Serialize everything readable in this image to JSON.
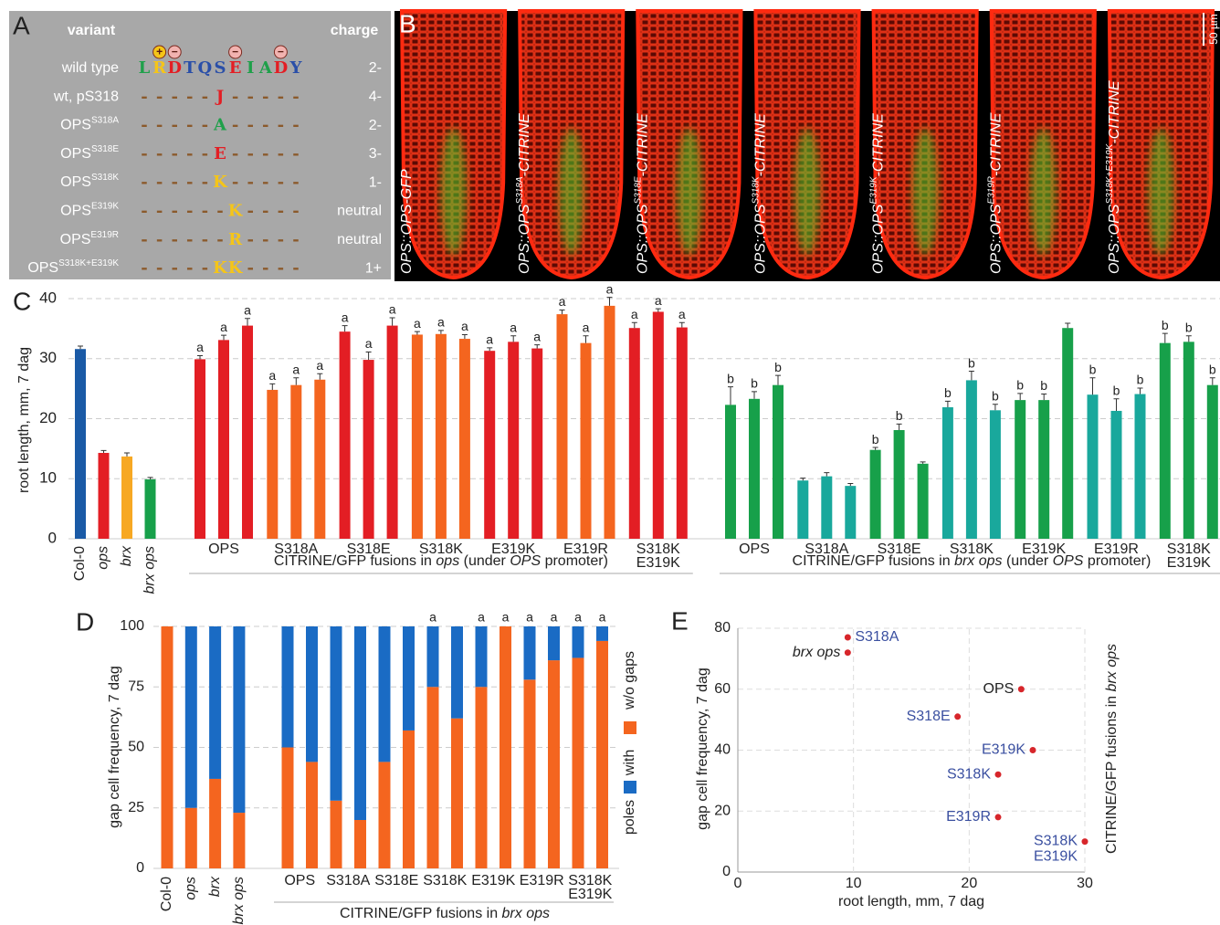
{
  "panel_a": {
    "label": "A",
    "header": {
      "variant": "variant",
      "charge": "charge"
    },
    "residue_colors": {
      "L": "#1fa04a",
      "R": "#f5c518",
      "D": "#e31e24",
      "T": "#2a4fa8",
      "Q": "#2a4fa8",
      "S": "#2a4fa8",
      "E": "#e31e24",
      "I": "#1fa04a",
      "A": "#1fa04a",
      "Y": "#2a4fa8",
      "J": "#e31e24",
      "K": "#f5c518",
      "-": "#8b5a2b"
    },
    "charge_marks": [
      {
        "position": 1,
        "sign": "+"
      },
      {
        "position": 2,
        "sign": "−"
      },
      {
        "position": 6,
        "sign": "−"
      },
      {
        "position": 9,
        "sign": "−"
      }
    ],
    "rows": [
      {
        "variant": "wild type",
        "sequence": "LRDTQSEIADY",
        "charge": "2-"
      },
      {
        "variant": "wt, pS318",
        "sequence": "-----J-----",
        "charge": "4-"
      },
      {
        "variant": "OPS",
        "superscript": "S318A",
        "sequence": "-----A-----",
        "charge": "2-"
      },
      {
        "variant": "OPS",
        "superscript": "S318E",
        "sequence": "-----E-----",
        "charge": "3-"
      },
      {
        "variant": "OPS",
        "superscript": "S318K",
        "sequence": "-----K-----",
        "charge": "1-"
      },
      {
        "variant": "OPS",
        "superscript": "E319K",
        "sequence": "------K----",
        "charge": "neutral"
      },
      {
        "variant": "OPS",
        "superscript": "E319R",
        "sequence": "------R----",
        "charge": "neutral"
      },
      {
        "variant": "OPS",
        "superscript": "S318K+E319K",
        "sequence": "-----KK----",
        "charge": "1+"
      }
    ]
  },
  "panel_b": {
    "label": "B",
    "scale_bar": "50 µm",
    "images": [
      {
        "prefix": "OPS::OPS",
        "suffix": "-GFP"
      },
      {
        "prefix": "OPS::OPS",
        "superscript": "S318A",
        "suffix": "-CITRINE"
      },
      {
        "prefix": "OPS::OPS",
        "superscript": "S318E",
        "suffix": "-CITRINE"
      },
      {
        "prefix": "OPS::OPS",
        "superscript": "S318K",
        "suffix": "-CITRINE"
      },
      {
        "prefix": "OPS::OPS",
        "superscript": "E319K",
        "suffix": "-CITRINE"
      },
      {
        "prefix": "OPS::OPS",
        "superscript": "E319R",
        "suffix": "-CITRINE"
      },
      {
        "prefix": "OPS::OPS",
        "superscript": "S318K+E319K",
        "suffix": "-CITRINE"
      }
    ]
  },
  "chart_data": [
    {
      "type": "grouped_bar",
      "label": "C",
      "ylabel": "root length, mm, 7 dag",
      "ylim": [
        0,
        40
      ],
      "yticks": [
        0,
        10,
        20,
        30,
        40
      ],
      "grid": true,
      "categories": [
        "Col-0",
        "ops",
        "brx",
        "brx ops"
      ],
      "values": [
        31.6,
        14.3,
        13.7,
        9.9
      ],
      "errors": [
        0.5,
        0.4,
        0.6,
        0.3
      ],
      "colors": [
        "#1a5aa6",
        "#e31e24",
        "#f7a823",
        "#17a04a"
      ],
      "sections": [
        {
          "label_parts": [
            "CITRINE/GFP fusions in ",
            "ops",
            " (under ",
            "OPS",
            " promoter)"
          ],
          "groups": [
            {
              "name": [
                "OPS"
              ],
              "color": "#e31e24",
              "values": [
                29.9,
                33.1,
                35.5
              ],
              "errors": [
                0.6,
                0.8,
                1.2
              ],
              "letters": [
                "a",
                "a",
                "a"
              ]
            },
            {
              "name": [
                "S318A"
              ],
              "color": "#f4651f",
              "values": [
                24.8,
                25.6,
                26.5
              ],
              "errors": [
                1.0,
                1.2,
                1.0
              ],
              "letters": [
                "a",
                "a",
                "a"
              ]
            },
            {
              "name": [
                "S318E"
              ],
              "color": "#e31e24",
              "values": [
                34.5,
                29.8,
                35.5
              ],
              "errors": [
                1.0,
                1.3,
                1.3
              ],
              "letters": [
                "a",
                "a",
                "a"
              ]
            },
            {
              "name": [
                "S318K"
              ],
              "color": "#f4651f",
              "values": [
                34.0,
                34.1,
                33.3
              ],
              "errors": [
                0.5,
                0.6,
                0.7
              ],
              "letters": [
                "a",
                "a",
                "a"
              ]
            },
            {
              "name": [
                "E319K"
              ],
              "color": "#e31e24",
              "values": [
                31.3,
                32.8,
                31.7
              ],
              "errors": [
                0.5,
                1.0,
                0.6
              ],
              "letters": [
                "a",
                "a",
                "a"
              ]
            },
            {
              "name": [
                "E319R"
              ],
              "color": "#f4651f",
              "values": [
                37.4,
                32.6,
                38.8
              ],
              "errors": [
                0.7,
                1.2,
                1.4
              ],
              "letters": [
                "a",
                "a",
                "a"
              ]
            },
            {
              "name": [
                "S318K",
                "E319K"
              ],
              "color": "#e31e24",
              "values": [
                35.1,
                37.8,
                35.2
              ],
              "errors": [
                0.9,
                0.5,
                0.8
              ],
              "letters": [
                "a",
                "a",
                "a"
              ]
            }
          ]
        },
        {
          "label_parts": [
            "CITRINE/GFP fusions in ",
            "brx ops",
            " (under ",
            "OPS",
            " promoter)"
          ],
          "groups": [
            {
              "name": [
                "OPS"
              ],
              "color": "#17a04a",
              "values": [
                22.3,
                23.3,
                25.6
              ],
              "errors": [
                3.0,
                1.2,
                1.6
              ],
              "letters": [
                "b",
                "b",
                "b"
              ]
            },
            {
              "name": [
                "S318A"
              ],
              "color": "#19a89c",
              "values": [
                9.7,
                10.4,
                8.8
              ],
              "errors": [
                0.4,
                0.6,
                0.4
              ],
              "letters": [
                null,
                null,
                null
              ]
            },
            {
              "name": [
                "S318E"
              ],
              "color": "#17a04a",
              "values": [
                14.8,
                18.1,
                12.5
              ],
              "errors": [
                0.4,
                1.0,
                0.3
              ],
              "letters": [
                "b",
                "b",
                null
              ]
            },
            {
              "name": [
                "S318K"
              ],
              "color": "#19a89c",
              "values": [
                21.9,
                26.4,
                21.4
              ],
              "errors": [
                1.0,
                1.5,
                1.0
              ],
              "letters": [
                "b",
                "b",
                "b"
              ]
            },
            {
              "name": [
                "E319K"
              ],
              "color": "#17a04a",
              "values": [
                23.1,
                23.1,
                35.1
              ],
              "errors": [
                1.1,
                1.0,
                0.8
              ],
              "letters": [
                "b",
                "b",
                null
              ]
            },
            {
              "name": [
                "E319R"
              ],
              "color": "#19a89c",
              "values": [
                24.0,
                21.3,
                24.1
              ],
              "errors": [
                2.8,
                2.0,
                1.0
              ],
              "letters": [
                "b",
                "b",
                "b"
              ]
            },
            {
              "name": [
                "S318K",
                "E319K"
              ],
              "color": "#17a04a",
              "values": [
                32.6,
                32.8,
                25.6
              ],
              "errors": [
                1.6,
                1.0,
                1.2
              ],
              "letters": [
                "b",
                "b",
                "b"
              ]
            }
          ]
        }
      ]
    },
    {
      "type": "stacked_bar",
      "label": "D",
      "ylabel": "gap cell frequency, 7 dag",
      "ylim": [
        0,
        100
      ],
      "yticks": [
        0,
        25,
        50,
        75,
        100
      ],
      "grid": true,
      "categories": [
        "Col-0",
        "ops",
        "brx",
        "brx ops",
        null,
        null,
        null,
        null,
        null,
        null,
        null,
        null,
        null,
        null,
        null,
        null,
        null,
        null
      ],
      "group_labels": [
        [
          "OPS"
        ],
        [
          "S318A"
        ],
        [
          "S318E"
        ],
        [
          "S318K"
        ],
        [
          "E319K"
        ],
        [
          "E319R"
        ],
        [
          "S318K",
          "E319K"
        ]
      ],
      "section_label_parts": [
        "CITRINE/GFP fusions in ",
        "brx ops"
      ],
      "legend_title": "poles",
      "series": [
        {
          "name": "w/o gaps",
          "color": "#f4651f",
          "values": [
            100,
            25,
            37,
            23,
            50,
            44,
            28,
            20,
            44,
            57,
            75,
            62,
            75,
            100,
            78,
            86,
            87,
            94
          ]
        },
        {
          "name": "with",
          "color": "#1a6bc4",
          "values": [
            0,
            75,
            63,
            77,
            50,
            56,
            72,
            80,
            56,
            43,
            25,
            38,
            25,
            0,
            22,
            14,
            13,
            6
          ]
        }
      ],
      "letters": [
        null,
        null,
        null,
        null,
        null,
        null,
        null,
        null,
        null,
        null,
        "a",
        null,
        "a",
        "a",
        "a",
        "a",
        "a",
        "a"
      ]
    },
    {
      "type": "scatter",
      "label": "E",
      "xlabel": "root length, mm, 7 dag",
      "ylabel": "gap cell frequency, 7 dag",
      "side_label_parts": [
        "CITRINE/GFP fusions in ",
        "brx ops"
      ],
      "xlim": [
        0,
        30
      ],
      "xticks": [
        0,
        10,
        20,
        30
      ],
      "ylim": [
        0,
        80
      ],
      "yticks": [
        0,
        20,
        40,
        60,
        80
      ],
      "grid": true,
      "color": "#d7262b",
      "x": [
        9.5,
        9.5,
        24.5,
        19,
        25.5,
        22.5,
        22.5,
        30
      ],
      "values": [
        77,
        72,
        60,
        51,
        40,
        32,
        18,
        10
      ],
      "point_labels": [
        [
          "S318A"
        ],
        [
          "brx ops"
        ],
        [
          "OPS"
        ],
        [
          "S318E"
        ],
        [
          "E319K"
        ],
        [
          "S318K"
        ],
        [
          "E319R"
        ],
        [
          "S318K",
          "E319K"
        ]
      ],
      "label_colors": [
        "#3a4fa0",
        "#222222",
        "#222222",
        "#3a4fa0",
        "#3a4fa0",
        "#3a4fa0",
        "#3a4fa0",
        "#3a4fa0"
      ],
      "label_italic": [
        false,
        true,
        false,
        false,
        false,
        false,
        false,
        false
      ]
    }
  ]
}
